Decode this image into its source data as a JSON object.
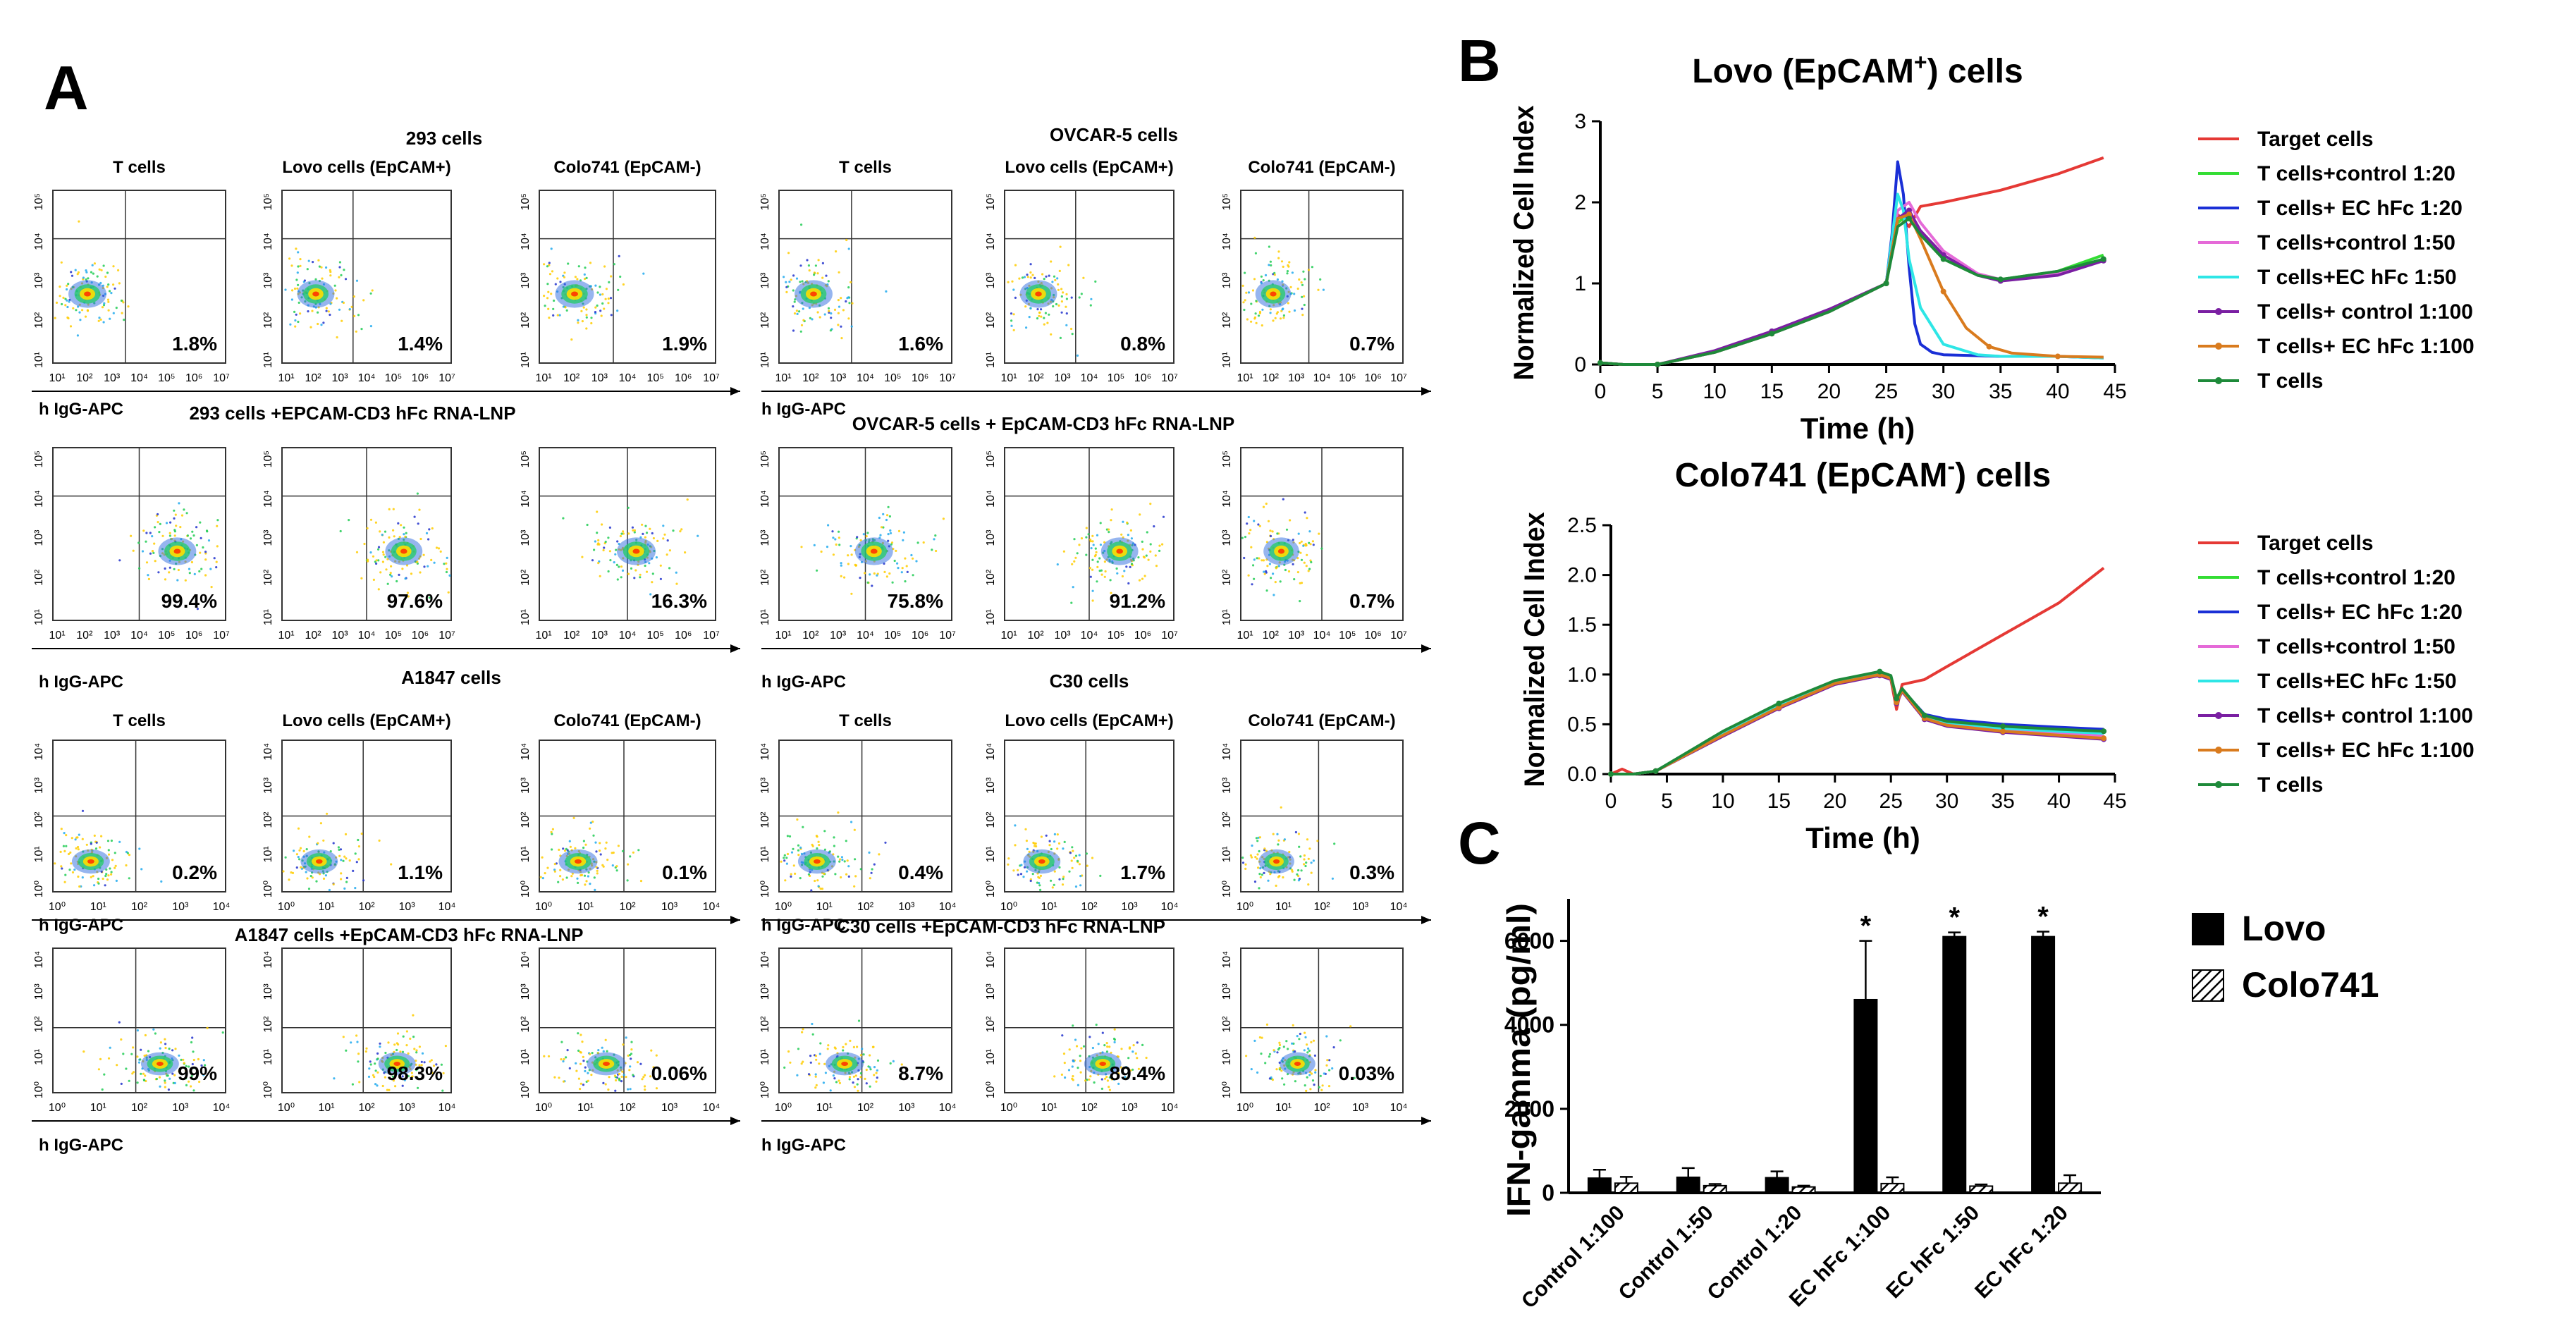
{
  "panel_a": {
    "letter": "A",
    "axis_label": "h IgG-APC",
    "row_titles": {
      "r1_293": "293 cells",
      "r1_ovcar": "OVCAR-5 cells",
      "r2_293": "293 cells +EPCAM-CD3 hFc RNA-LNP",
      "r2_ovcar": "OVCAR-5 cells + EpCAM-CD3 hFc RNA-LNP",
      "r3_a1847": "A1847 cells",
      "r3_c30": "C30 cells",
      "r4_a1847": "A1847 cells +EpCAM-CD3 hFc RNA-LNP",
      "r4_c30": "C30 cells +EpCAM-CD3 hFc RNA-LNP"
    },
    "column_titles": {
      "t": "T cells",
      "lovo": "Lovo cells (EpCAM+)",
      "colo": "Colo741 (EpCAM-)"
    },
    "percentages": {
      "r1": [
        "1.8%",
        "1.4%",
        "1.9%",
        "1.6%",
        "0.8%",
        "0.7%"
      ],
      "r2": [
        "99.4%",
        "97.6%",
        "16.3%",
        "75.8%",
        "91.2%",
        "0.7%"
      ],
      "r3": [
        "0.2%",
        "1.1%",
        "0.1%",
        "0.4%",
        "1.7%",
        "0.3%"
      ],
      "r4": [
        "99%",
        "98.3%",
        "0.06%",
        "8.7%",
        "89.4%",
        "0.03%"
      ]
    },
    "x_ticks_a": [
      "10¹",
      "10²",
      "10³",
      "10⁴",
      "10⁵",
      "10⁶",
      "10⁷"
    ],
    "x_ticks_b": [
      "10⁰",
      "10¹",
      "10²",
      "10³",
      "10⁴"
    ],
    "y_ticks_a": [
      "10¹",
      "10²",
      "10³",
      "10⁴",
      "10⁵"
    ],
    "y_ticks_b": [
      "10⁰",
      "10¹",
      "10²",
      "10³",
      "10⁴"
    ]
  },
  "chart_data": [
    {
      "type": "line",
      "panel": "B",
      "title_main": "Lovo (EpCAM",
      "title_sup": "+",
      "title_tail": ") cells",
      "xlabel": "Time (h)",
      "ylabel": "Normalized Cell Index",
      "xlim": [
        0,
        45
      ],
      "ylim": [
        0,
        3
      ],
      "x_ticks": [
        "0",
        "5",
        "10",
        "15",
        "20",
        "25",
        "30",
        "35",
        "40",
        "45"
      ],
      "y_ticks": [
        "0",
        "1",
        "2",
        "3"
      ],
      "series": [
        {
          "name": "Target cells",
          "color": "#e53935",
          "x": [
            0,
            2,
            5,
            10,
            15,
            20,
            25,
            26,
            27,
            28,
            30,
            35,
            40,
            44
          ],
          "y": [
            0.02,
            0.0,
            0.0,
            0.15,
            0.38,
            0.65,
            1.0,
            1.85,
            1.7,
            1.95,
            2.0,
            2.15,
            2.35,
            2.55
          ]
        },
        {
          "name": "T cells+control 1:20",
          "color": "#33dd33",
          "x": [
            0,
            2,
            5,
            10,
            15,
            20,
            25,
            26,
            27,
            28,
            30,
            33,
            35,
            40,
            44
          ],
          "y": [
            0.02,
            0.0,
            0.0,
            0.15,
            0.38,
            0.65,
            1.0,
            1.75,
            1.85,
            1.6,
            1.3,
            1.1,
            1.05,
            1.15,
            1.35
          ]
        },
        {
          "name": "T cells+ EC hFc  1:20",
          "color": "#1a2fd6",
          "x": [
            0,
            2,
            5,
            10,
            15,
            20,
            25,
            25.5,
            26,
            26.5,
            27,
            27.5,
            28,
            29,
            30,
            35,
            40,
            44
          ],
          "y": [
            0.02,
            0.0,
            0.0,
            0.15,
            0.38,
            0.65,
            1.0,
            1.6,
            2.5,
            2.1,
            1.2,
            0.5,
            0.25,
            0.15,
            0.12,
            0.1,
            0.1,
            0.08
          ]
        },
        {
          "name": "T cells+control 1:50",
          "color": "#e56ad8",
          "x": [
            0,
            2,
            5,
            10,
            15,
            20,
            25,
            26,
            27,
            28,
            30,
            33,
            35,
            40,
            44
          ],
          "y": [
            0.02,
            0.0,
            0.0,
            0.15,
            0.38,
            0.65,
            1.0,
            1.9,
            2.0,
            1.75,
            1.4,
            1.12,
            1.05,
            1.12,
            1.3
          ]
        },
        {
          "name": "T cells+EC hFc 1:50",
          "color": "#2ee6e6",
          "x": [
            0,
            2,
            5,
            10,
            15,
            20,
            25,
            26,
            26.5,
            27,
            28,
            30,
            33,
            35,
            40,
            44
          ],
          "y": [
            0.02,
            0.0,
            0.0,
            0.15,
            0.38,
            0.65,
            1.0,
            2.1,
            1.9,
            1.3,
            0.7,
            0.25,
            0.12,
            0.1,
            0.1,
            0.08
          ]
        },
        {
          "name": "T cells+ control 1:100",
          "color": "#7a1fa2",
          "x": [
            0,
            2,
            5,
            10,
            15,
            20,
            25,
            26,
            27,
            28,
            30,
            33,
            35,
            40,
            44
          ],
          "y": [
            0.02,
            0.0,
            0.0,
            0.17,
            0.41,
            0.68,
            1.0,
            1.8,
            1.9,
            1.65,
            1.35,
            1.1,
            1.03,
            1.1,
            1.28
          ]
        },
        {
          "name": "T cells+ EC hFc 1:100",
          "color": "#d97b1e",
          "x": [
            0,
            2,
            5,
            10,
            15,
            20,
            25,
            26,
            27,
            28,
            30,
            32,
            34,
            36,
            40,
            44
          ],
          "y": [
            0.02,
            0.0,
            0.0,
            0.15,
            0.38,
            0.65,
            1.0,
            1.8,
            1.85,
            1.55,
            0.9,
            0.45,
            0.22,
            0.14,
            0.1,
            0.09
          ]
        },
        {
          "name": "T cells",
          "color": "#1e8a3a",
          "x": [
            0,
            2,
            5,
            10,
            15,
            20,
            25,
            26,
            27,
            28,
            30,
            33,
            35,
            40,
            44
          ],
          "y": [
            0.02,
            0.0,
            0.0,
            0.15,
            0.38,
            0.65,
            1.0,
            1.7,
            1.8,
            1.6,
            1.3,
            1.1,
            1.05,
            1.15,
            1.3
          ]
        }
      ]
    },
    {
      "type": "line",
      "panel": "",
      "title_main": "Colo741 (EpCAM",
      "title_sup": "-",
      "title_tail": ") cells",
      "xlabel": "Time (h)",
      "ylabel": "Normalized Cell Index",
      "xlim": [
        0,
        45
      ],
      "ylim": [
        0,
        2.5
      ],
      "x_ticks": [
        "0",
        "5",
        "10",
        "15",
        "20",
        "25",
        "30",
        "35",
        "40",
        "45"
      ],
      "y_ticks": [
        "0.0",
        "0.5",
        "1.0",
        "1.5",
        "2.0",
        "2.5"
      ],
      "series": [
        {
          "name": "Target cells",
          "color": "#e53935",
          "x": [
            0,
            1,
            2,
            4,
            10,
            15,
            20,
            24,
            25,
            25.5,
            26,
            28,
            30,
            35,
            40,
            44
          ],
          "y": [
            0.0,
            0.05,
            0.0,
            0.03,
            0.4,
            0.68,
            0.92,
            1.0,
            0.95,
            0.65,
            0.9,
            0.95,
            1.08,
            1.4,
            1.72,
            2.07
          ]
        },
        {
          "name": "T cells+control 1:20",
          "color": "#33dd33",
          "x": [
            0,
            2,
            4,
            10,
            15,
            20,
            24,
            25,
            25.5,
            26,
            28,
            30,
            35,
            40,
            44
          ],
          "y": [
            0.0,
            0.0,
            0.03,
            0.42,
            0.7,
            0.93,
            1.02,
            0.98,
            0.75,
            0.85,
            0.58,
            0.52,
            0.47,
            0.44,
            0.42
          ]
        },
        {
          "name": "T cells+ EC hFc  1:20",
          "color": "#1a2fd6",
          "x": [
            0,
            2,
            4,
            10,
            15,
            20,
            24,
            25,
            25.5,
            26,
            28,
            30,
            35,
            40,
            44
          ],
          "y": [
            0.0,
            0.0,
            0.03,
            0.4,
            0.68,
            0.92,
            1.0,
            0.97,
            0.74,
            0.85,
            0.6,
            0.55,
            0.5,
            0.47,
            0.45
          ]
        },
        {
          "name": "T cells+control 1:50",
          "color": "#e56ad8",
          "x": [
            0,
            2,
            4,
            10,
            15,
            20,
            24,
            25,
            25.5,
            26,
            28,
            30,
            35,
            40,
            44
          ],
          "y": [
            0.0,
            0.0,
            0.03,
            0.4,
            0.68,
            0.92,
            1.0,
            0.96,
            0.72,
            0.84,
            0.57,
            0.5,
            0.44,
            0.41,
            0.38
          ]
        },
        {
          "name": "T cells+EC hFc 1:50",
          "color": "#2ee6e6",
          "x": [
            0,
            2,
            4,
            10,
            15,
            20,
            24,
            25,
            25.5,
            26,
            28,
            30,
            35,
            40,
            44
          ],
          "y": [
            0.0,
            0.0,
            0.03,
            0.41,
            0.69,
            0.93,
            1.01,
            0.97,
            0.73,
            0.85,
            0.58,
            0.52,
            0.46,
            0.43,
            0.41
          ]
        },
        {
          "name": "T cells+ control 1:100",
          "color": "#7a1fa2",
          "x": [
            0,
            2,
            4,
            10,
            15,
            20,
            24,
            25,
            25.5,
            26,
            28,
            30,
            35,
            40,
            44
          ],
          "y": [
            0.0,
            0.0,
            0.03,
            0.38,
            0.66,
            0.9,
            0.99,
            0.95,
            0.71,
            0.83,
            0.55,
            0.48,
            0.42,
            0.38,
            0.35
          ]
        },
        {
          "name": "T cells+ EC hFc 1:100",
          "color": "#d97b1e",
          "x": [
            0,
            2,
            4,
            10,
            15,
            20,
            24,
            25,
            25.5,
            26,
            28,
            30,
            35,
            40,
            44
          ],
          "y": [
            0.0,
            0.0,
            0.03,
            0.39,
            0.67,
            0.91,
            1.0,
            0.96,
            0.72,
            0.84,
            0.56,
            0.49,
            0.43,
            0.39,
            0.36
          ]
        },
        {
          "name": "T cells",
          "color": "#1e8a3a",
          "x": [
            0,
            2,
            4,
            10,
            15,
            20,
            24,
            25,
            25.5,
            26,
            28,
            30,
            35,
            40,
            44
          ],
          "y": [
            0.0,
            0.0,
            0.03,
            0.43,
            0.71,
            0.94,
            1.03,
            0.99,
            0.76,
            0.86,
            0.59,
            0.53,
            0.48,
            0.45,
            0.43
          ]
        }
      ]
    },
    {
      "type": "bar",
      "panel": "C",
      "ylabel": "IFN-gamma (pg/ml)",
      "ylim": [
        0,
        7000
      ],
      "y_ticks": [
        "0",
        "2000",
        "4000",
        "6000"
      ],
      "categories": [
        "Control 1:100",
        "Control 1:50",
        "Control 1:20",
        "EC hFc 1:100",
        "EC hFc 1:50",
        "EC hFc 1:20"
      ],
      "series": [
        {
          "name": "Lovo",
          "values": [
            350,
            370,
            360,
            4600,
            6100,
            6100
          ],
          "errors": [
            200,
            220,
            150,
            1400,
            100,
            120
          ],
          "significance": [
            "",
            "",
            "",
            "*",
            "*",
            "*"
          ]
        },
        {
          "name": "Colo741",
          "values": [
            230,
            170,
            140,
            220,
            160,
            230
          ],
          "errors": [
            150,
            40,
            30,
            150,
            40,
            190
          ]
        }
      ]
    }
  ]
}
